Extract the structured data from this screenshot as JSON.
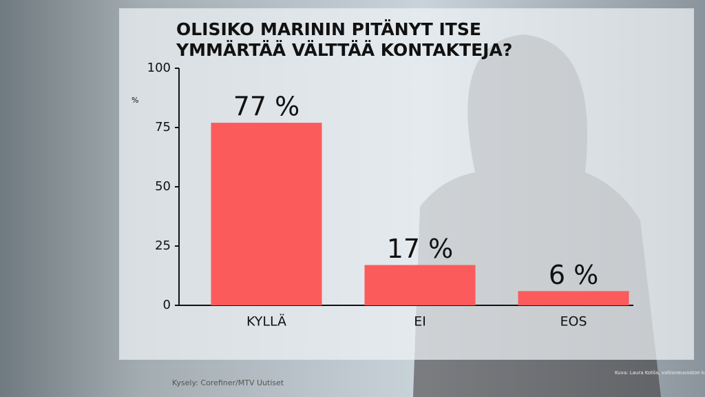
{
  "chart_data": {
    "type": "bar",
    "title": "OLISIKO MARININ PITÄNYT ITSE YMMÄRTÄÄ VÄLTTÄÄ KONTAKTEJA?",
    "y_label": "%",
    "categories": [
      "KYLLÄ",
      "EI",
      "EOS"
    ],
    "values": [
      77,
      17,
      6
    ],
    "value_labels": [
      "77 %",
      "17 %",
      "6 %"
    ],
    "color": "#fb5b5b",
    "ylim": [
      0,
      100
    ],
    "yticks": [
      0,
      25,
      50,
      75,
      100
    ],
    "source": "Kysely: Corefiner/MTV Uutiset",
    "credit": "Kuva: Laura Kotila, valtioneuvoston kanslia"
  }
}
